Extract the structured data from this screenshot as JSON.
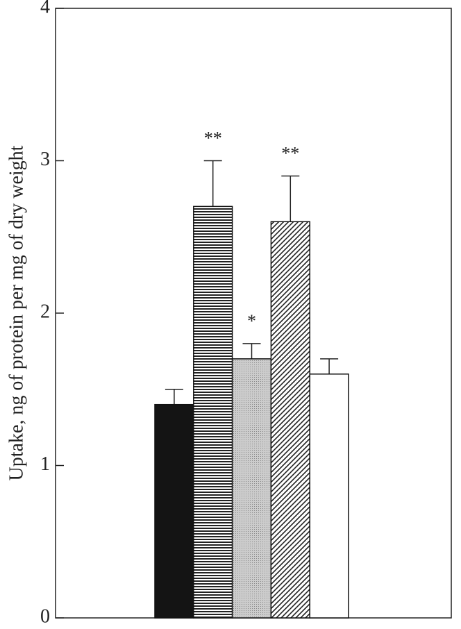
{
  "chart_data": {
    "type": "bar",
    "ylabel": "Uptake, ng of protein per mg of dry weight",
    "categories": [
      null,
      null,
      null,
      null,
      null
    ],
    "values": [
      1.4,
      2.7,
      1.7,
      2.6,
      1.6
    ],
    "errors": [
      0.1,
      0.3,
      0.1,
      0.3,
      0.1
    ],
    "annotations": [
      null,
      "**",
      "*",
      "**",
      null
    ],
    "colors": [
      "#141414",
      "#555555",
      "#bdbdbd",
      "#555555",
      "#ffffff"
    ],
    "patterns": [
      "solid",
      "horizontal",
      "dots",
      "diagonal",
      "solid"
    ],
    "ylim": [
      0,
      4
    ],
    "yticks": [
      0,
      1,
      2,
      3,
      4
    ]
  }
}
